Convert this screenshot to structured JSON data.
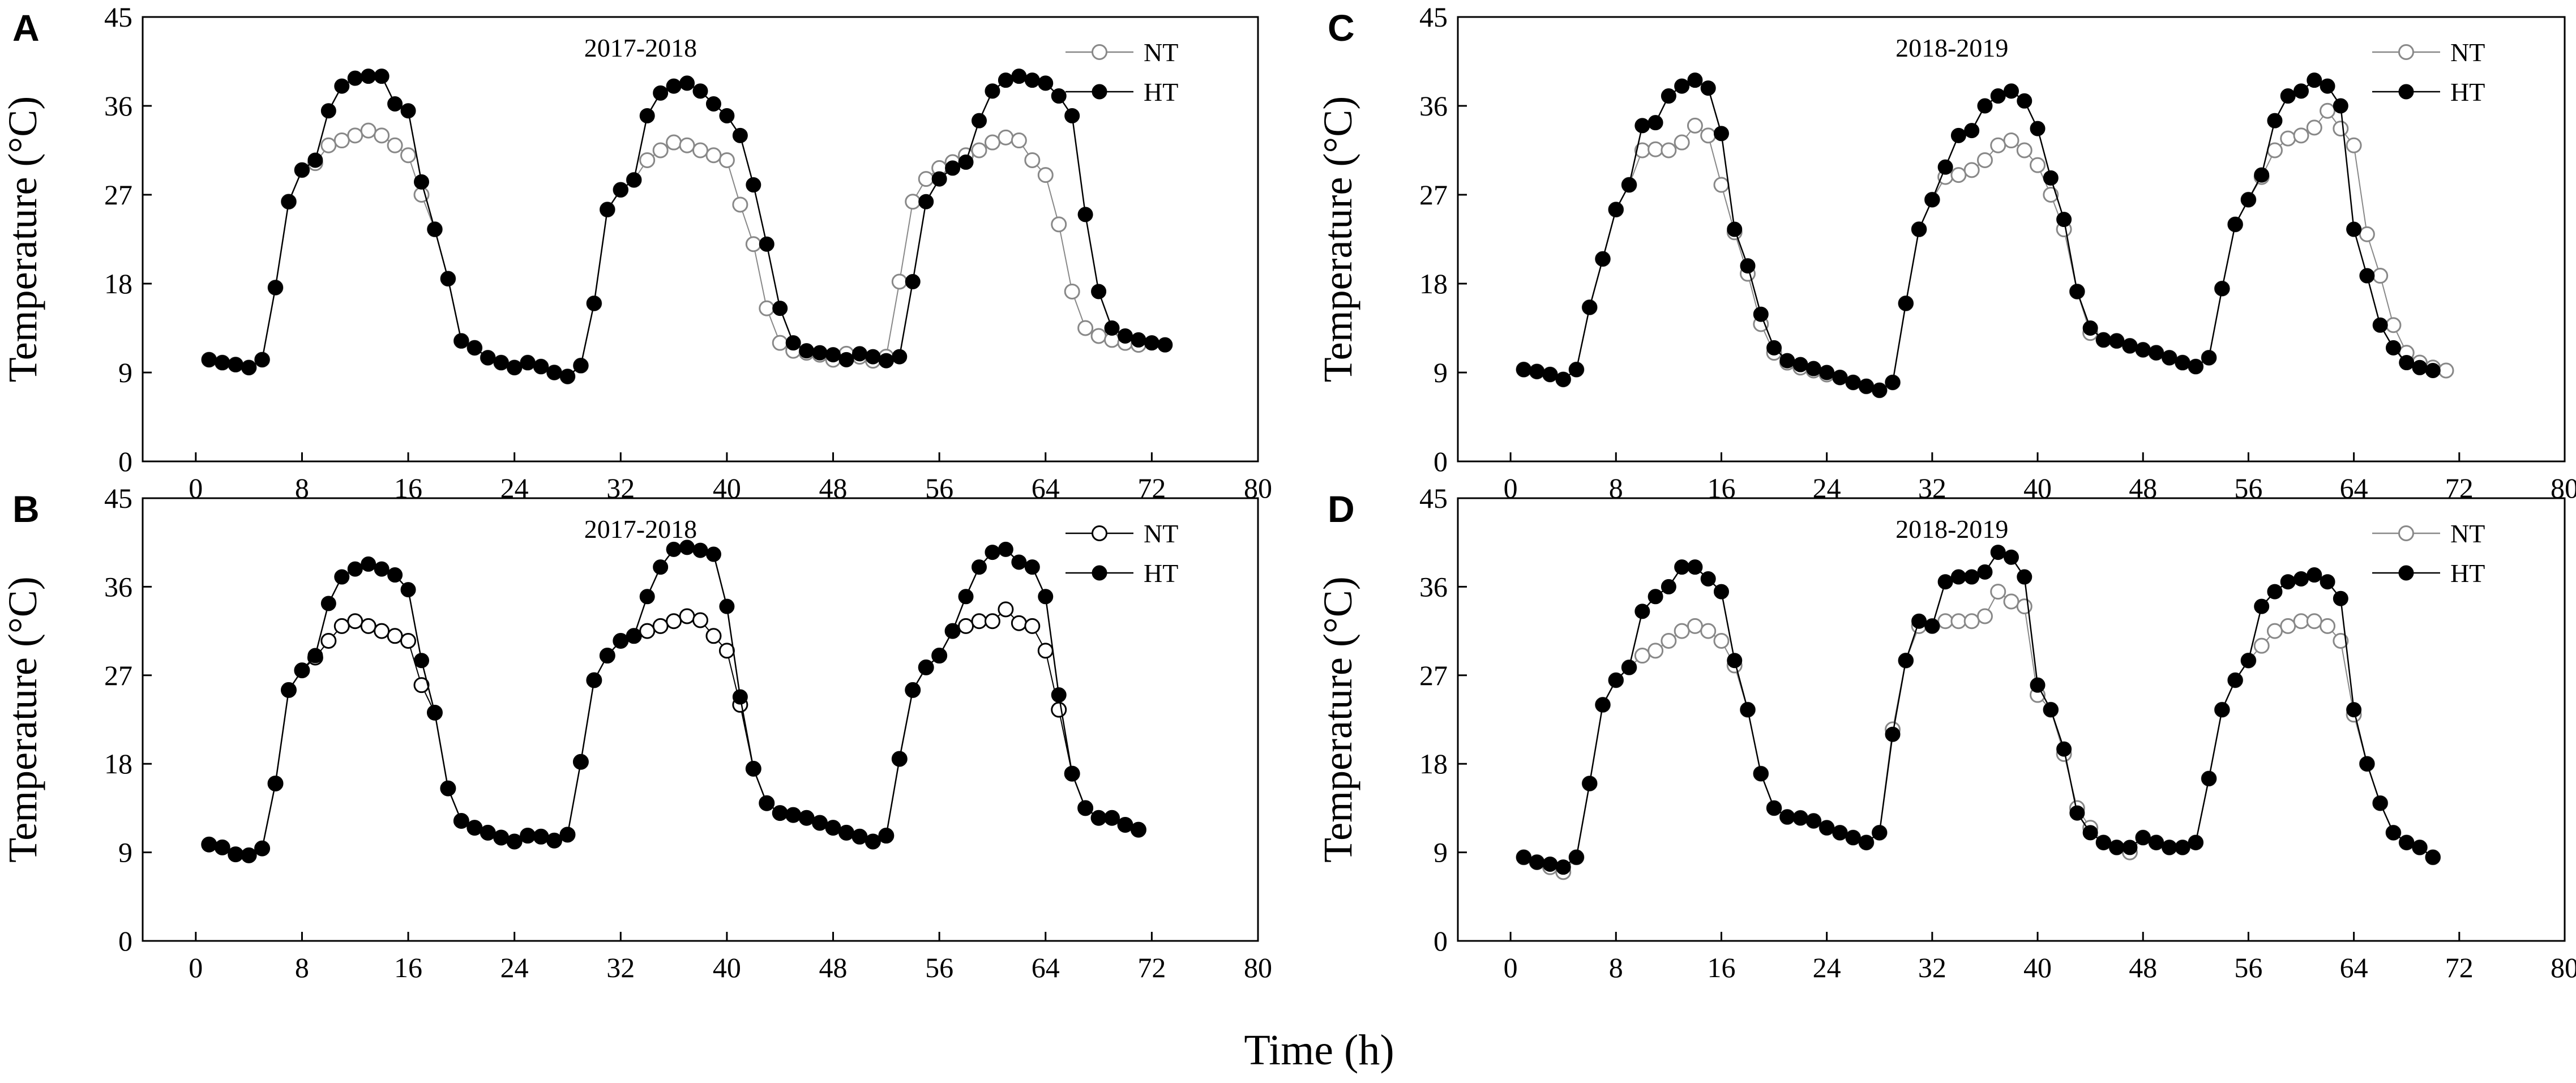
{
  "figure": {
    "xlabel": "Time (h)"
  },
  "chart_data": [
    {
      "type": "line",
      "panel": "A",
      "title": "2017-2018",
      "ylabel": "Temperature (°C)",
      "xlabel": "Time (h)",
      "xlim": [
        -4,
        80
      ],
      "ylim": [
        0,
        45
      ],
      "xticks": [
        0,
        8,
        16,
        24,
        32,
        40,
        48,
        56,
        64,
        72,
        80
      ],
      "yticks": [
        0,
        9,
        18,
        27,
        36,
        45
      ],
      "legend_position": "top-right",
      "series": [
        {
          "name": "NT",
          "marker": "open-circle",
          "color": "#888888",
          "values": [
            10.3,
            10.0,
            9.8,
            9.5,
            10.3,
            17.6,
            26.3,
            29.5,
            30.2,
            32.0,
            32.5,
            33.0,
            33.5,
            33.0,
            32.0,
            31.0,
            27.0,
            23.5,
            18.5,
            12.2,
            11.5,
            10.5,
            10.0,
            9.5,
            10.0,
            9.6,
            9.0,
            8.6,
            9.7,
            16.0,
            25.5,
            27.5,
            28.5,
            30.5,
            31.5,
            32.3,
            32.0,
            31.5,
            31.0,
            30.5,
            26.0,
            22.0,
            15.5,
            12.0,
            11.2,
            11.0,
            10.8,
            10.3,
            10.9,
            10.6,
            10.2,
            10.6,
            18.2,
            26.3,
            28.6,
            29.7,
            30.3,
            31.0,
            31.5,
            32.3,
            32.8,
            32.5,
            30.5,
            29.0,
            24.0,
            17.2,
            13.5,
            12.7,
            12.3,
            12.0,
            11.8
          ]
        },
        {
          "name": "HT",
          "marker": "filled-circle",
          "color": "#000000",
          "values": [
            10.3,
            10.0,
            9.8,
            9.5,
            10.3,
            17.6,
            26.3,
            29.5,
            30.5,
            35.5,
            38.0,
            38.8,
            39.0,
            39.0,
            36.2,
            35.5,
            28.3,
            23.5,
            18.5,
            12.2,
            11.5,
            10.5,
            10.0,
            9.5,
            10.0,
            9.6,
            9.0,
            8.6,
            9.7,
            16.0,
            25.5,
            27.5,
            28.5,
            35.0,
            37.3,
            38.0,
            38.3,
            37.5,
            36.2,
            35.0,
            33.0,
            28.0,
            22.0,
            15.5,
            12.0,
            11.2,
            11.0,
            10.8,
            10.3,
            10.9,
            10.6,
            10.2,
            10.6,
            18.2,
            26.3,
            28.6,
            29.7,
            30.3,
            34.5,
            37.5,
            38.6,
            39.0,
            38.6,
            38.3,
            37.0,
            35.0,
            25.0,
            17.2,
            13.5,
            12.7,
            12.3,
            12.0,
            11.8
          ]
        }
      ]
    },
    {
      "type": "line",
      "panel": "B",
      "title": "2017-2018",
      "ylabel": "Temperature (°C)",
      "xlabel": "Time (h)",
      "xlim": [
        -4,
        80
      ],
      "ylim": [
        0,
        45
      ],
      "xticks": [
        0,
        8,
        16,
        24,
        32,
        40,
        48,
        56,
        64,
        72,
        80
      ],
      "yticks": [
        0,
        9,
        18,
        27,
        36,
        45
      ],
      "legend_position": "top-right",
      "series": [
        {
          "name": "NT",
          "marker": "open-circle",
          "color": "#000000",
          "values": [
            9.8,
            9.5,
            8.8,
            8.7,
            9.4,
            16.0,
            25.5,
            27.5,
            28.8,
            30.5,
            32.0,
            32.5,
            32.0,
            31.5,
            31.0,
            30.5,
            26.0,
            23.2,
            15.5,
            12.2,
            11.5,
            11.0,
            10.5,
            10.1,
            10.7,
            10.6,
            10.2,
            10.8,
            18.2,
            26.5,
            29.0,
            30.5,
            31.0,
            31.5,
            32.0,
            32.5,
            33.0,
            32.6,
            31.0,
            29.5,
            24.0,
            17.5,
            14.0,
            13.0,
            12.8,
            12.5,
            12.0,
            11.5,
            11.0,
            10.6,
            10.1,
            10.7,
            18.5,
            25.5,
            27.8,
            29.0,
            31.5,
            32.0,
            32.5,
            32.5,
            33.7,
            32.3,
            32.0,
            29.5,
            23.5,
            17.0,
            13.5,
            12.5,
            12.5,
            11.8,
            11.3
          ]
        },
        {
          "name": "HT",
          "marker": "filled-circle",
          "color": "#000000",
          "values": [
            9.8,
            9.5,
            8.8,
            8.7,
            9.4,
            16.0,
            25.5,
            27.5,
            29.0,
            34.3,
            37.0,
            37.8,
            38.3,
            37.8,
            37.2,
            35.7,
            28.5,
            23.2,
            15.5,
            12.2,
            11.5,
            11.0,
            10.5,
            10.1,
            10.7,
            10.6,
            10.2,
            10.8,
            18.2,
            26.5,
            29.0,
            30.5,
            31.0,
            35.0,
            38.0,
            39.8,
            40.0,
            39.7,
            39.3,
            34.0,
            24.8,
            17.5,
            14.0,
            13.0,
            12.8,
            12.5,
            12.0,
            11.5,
            11.0,
            10.6,
            10.1,
            10.7,
            18.5,
            25.5,
            27.8,
            29.0,
            31.5,
            35.0,
            38.0,
            39.5,
            39.8,
            38.5,
            38.0,
            35.0,
            25.0,
            17.0,
            13.5,
            12.5,
            12.5,
            11.8,
            11.3
          ]
        }
      ]
    },
    {
      "type": "line",
      "panel": "C",
      "title": "2018-2019",
      "ylabel": "Temperature (°C)",
      "xlabel": "Time (h)",
      "xlim": [
        -4,
        80
      ],
      "ylim": [
        0,
        45
      ],
      "xticks": [
        0,
        8,
        16,
        24,
        32,
        40,
        48,
        56,
        64,
        72,
        80
      ],
      "yticks": [
        0,
        9,
        18,
        27,
        36,
        45
      ],
      "legend_position": "top-right",
      "series": [
        {
          "name": "NT",
          "marker": "open-circle",
          "color": "#888888",
          "values": [
            9.3,
            9.1,
            8.8,
            8.3,
            9.3,
            15.6,
            20.5,
            25.5,
            28.0,
            31.5,
            31.6,
            31.5,
            32.3,
            34.0,
            33.0,
            28.0,
            23.2,
            19.0,
            13.9,
            11.0,
            10.0,
            9.5,
            9.2,
            8.8,
            8.5,
            8.0,
            7.6,
            7.2,
            8.0,
            16.0,
            23.5,
            26.5,
            28.8,
            29.0,
            29.5,
            30.5,
            32.0,
            32.5,
            31.5,
            30.0,
            27.0,
            23.5,
            17.2,
            13.0,
            12.3,
            12.2,
            11.7,
            11.3,
            11.0,
            10.5,
            10.0,
            9.6,
            10.5,
            17.5,
            24.0,
            26.5,
            28.8,
            31.5,
            32.7,
            33.0,
            33.8,
            35.5,
            33.7,
            32.0,
            23.0,
            18.8,
            13.8,
            11.0,
            10.0,
            9.5,
            9.2
          ]
        },
        {
          "name": "HT",
          "marker": "filled-circle",
          "color": "#000000",
          "values": [
            9.3,
            9.1,
            8.8,
            8.3,
            9.3,
            15.6,
            20.5,
            25.5,
            28.0,
            34.0,
            34.3,
            37.0,
            38.0,
            38.6,
            37.8,
            33.2,
            23.5,
            19.8,
            14.9,
            11.5,
            10.2,
            9.8,
            9.4,
            9.0,
            8.5,
            8.0,
            7.6,
            7.2,
            8.0,
            16.0,
            23.5,
            26.5,
            29.8,
            33.0,
            33.5,
            36.0,
            37.0,
            37.5,
            36.5,
            33.7,
            28.7,
            24.5,
            17.2,
            13.5,
            12.3,
            12.2,
            11.7,
            11.3,
            11.0,
            10.5,
            10.0,
            9.6,
            10.5,
            17.5,
            24.0,
            26.5,
            29.0,
            34.5,
            37.0,
            37.5,
            38.6,
            38.0,
            36.0,
            23.5,
            18.8,
            13.8,
            11.5,
            10.0,
            9.5,
            9.2
          ]
        }
      ]
    },
    {
      "type": "line",
      "panel": "D",
      "title": "2018-2019",
      "ylabel": "Temperature (°C)",
      "xlabel": "Time (h)",
      "xlim": [
        -4,
        80
      ],
      "ylim": [
        0,
        45
      ],
      "xticks": [
        0,
        8,
        16,
        24,
        32,
        40,
        48,
        56,
        64,
        72,
        80
      ],
      "yticks": [
        0,
        9,
        18,
        27,
        36,
        45
      ],
      "legend_position": "top-right",
      "series": [
        {
          "name": "NT",
          "marker": "open-circle",
          "color": "#888888",
          "values": [
            8.5,
            8.0,
            7.5,
            7.0,
            8.5,
            16.0,
            24.0,
            26.5,
            27.8,
            29.0,
            29.5,
            30.5,
            31.5,
            32.0,
            31.5,
            30.5,
            28.0,
            23.5,
            17.0,
            13.5,
            12.6,
            12.5,
            12.2,
            11.5,
            11.0,
            10.5,
            10.0,
            11.0,
            21.5,
            28.5,
            32.0,
            32.0,
            32.5,
            32.5,
            32.5,
            33.0,
            35.5,
            34.5,
            34.0,
            25.0,
            23.5,
            19.0,
            13.5,
            11.5,
            10.0,
            9.5,
            9.0,
            10.5,
            10.0,
            9.5,
            9.5,
            10.0,
            16.5,
            23.5,
            26.5,
            28.5,
            30.0,
            31.5,
            32.0,
            32.5,
            32.5,
            32.0,
            30.5,
            23.0,
            18.0,
            14.0,
            11.0,
            10.0,
            9.5,
            8.5
          ]
        },
        {
          "name": "HT",
          "marker": "filled-circle",
          "color": "#000000",
          "values": [
            8.5,
            8.0,
            7.8,
            7.5,
            8.5,
            16.0,
            24.0,
            26.5,
            27.8,
            33.5,
            35.0,
            36.0,
            38.0,
            38.0,
            36.8,
            35.5,
            28.5,
            23.5,
            17.0,
            13.5,
            12.6,
            12.5,
            12.2,
            11.5,
            11.0,
            10.5,
            10.0,
            11.0,
            21.0,
            28.5,
            32.5,
            32.0,
            36.5,
            37.0,
            37.0,
            37.5,
            39.5,
            39.0,
            37.0,
            26.0,
            23.5,
            19.5,
            13.0,
            11.0,
            10.0,
            9.5,
            9.5,
            10.5,
            10.0,
            9.5,
            9.5,
            10.0,
            16.5,
            23.5,
            26.5,
            28.5,
            34.0,
            35.5,
            36.5,
            36.8,
            37.2,
            36.5,
            34.8,
            23.5,
            18.0,
            14.0,
            11.0,
            10.0,
            9.5,
            8.5
          ]
        }
      ]
    }
  ]
}
